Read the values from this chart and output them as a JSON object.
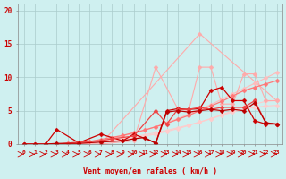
{
  "background_color": "#cff0f0",
  "grid_color": "#aacccc",
  "xlabel": "Vent moyen/en rafales ( km/h )",
  "xlabel_color": "#cc0000",
  "tick_color": "#cc0000",
  "ylabel_ticks": [
    0,
    5,
    10,
    15,
    20
  ],
  "xlim": [
    -0.5,
    23.5
  ],
  "ylim": [
    0,
    21
  ],
  "series": [
    {
      "x": [
        0,
        7,
        16,
        23
      ],
      "y": [
        0,
        0,
        16.5,
        6.5
      ],
      "color": "#ffaaaa",
      "marker": "D",
      "lw": 0.8,
      "ms": 2.5
    },
    {
      "x": [
        0,
        1,
        2,
        3,
        4,
        5,
        6,
        7,
        8,
        9,
        10,
        11,
        12,
        13,
        14,
        15,
        16,
        17,
        18,
        19,
        20,
        21,
        22,
        23
      ],
      "y": [
        0,
        0,
        0,
        0,
        0.1,
        0.2,
        0.4,
        0.6,
        0.9,
        1.2,
        1.6,
        2.1,
        2.6,
        3.2,
        3.8,
        4.5,
        5.2,
        5.9,
        6.7,
        7.5,
        8.3,
        9.1,
        9.9,
        10.7
      ],
      "color": "#ffbbbb",
      "marker": "D",
      "lw": 0.8,
      "ms": 2.5
    },
    {
      "x": [
        0,
        1,
        2,
        3,
        4,
        5,
        6,
        7,
        8,
        9,
        10,
        11,
        12,
        13,
        14,
        15,
        16,
        17,
        18,
        19,
        20,
        21,
        22,
        23
      ],
      "y": [
        0,
        0,
        0,
        0,
        0.05,
        0.1,
        0.2,
        0.35,
        0.5,
        0.7,
        0.9,
        1.2,
        1.5,
        1.9,
        2.3,
        2.8,
        3.3,
        3.8,
        4.4,
        5.0,
        5.6,
        6.0,
        6.4,
        6.5
      ],
      "color": "#ffcccc",
      "marker": "D",
      "lw": 0.8,
      "ms": 2.5
    },
    {
      "x": [
        0,
        3,
        7,
        10,
        12,
        14,
        15,
        16,
        17,
        18,
        19,
        20,
        21,
        22,
        23
      ],
      "y": [
        0,
        0,
        0,
        0.5,
        11.5,
        5.3,
        5.0,
        11.5,
        11.5,
        6.0,
        6.0,
        10.5,
        10.5,
        6.5,
        6.5
      ],
      "color": "#ffaaaa",
      "marker": "D",
      "lw": 0.8,
      "ms": 2.5
    },
    {
      "x": [
        0,
        1,
        2,
        3,
        4,
        5,
        6,
        7,
        8,
        9,
        10,
        11,
        12,
        13,
        14,
        15,
        16,
        17,
        18,
        19,
        20,
        21,
        22,
        23
      ],
      "y": [
        0,
        0,
        0,
        0,
        0.05,
        0.15,
        0.3,
        0.45,
        0.65,
        0.85,
        1.1,
        1.4,
        1.7,
        2.05,
        2.45,
        2.85,
        3.3,
        3.8,
        4.3,
        4.8,
        5.2,
        5.5,
        5.7,
        5.8
      ],
      "color": "#ffcccc",
      "marker": "D",
      "lw": 0.8,
      "ms": 2.5
    },
    {
      "x": [
        0,
        1,
        2,
        3,
        4,
        5,
        6,
        7,
        8,
        9,
        10,
        11,
        12,
        13,
        14,
        15,
        16,
        17,
        18,
        19,
        20,
        21,
        22,
        23
      ],
      "y": [
        0,
        0,
        0,
        0,
        0.1,
        0.2,
        0.4,
        0.7,
        1.0,
        1.3,
        1.7,
        2.1,
        2.6,
        3.1,
        3.7,
        4.3,
        5.0,
        5.7,
        6.4,
        7.2,
        8.0,
        8.5,
        9.0,
        9.5
      ],
      "color": "#ff7777",
      "marker": "D",
      "lw": 0.9,
      "ms": 2.5
    },
    {
      "x": [
        0,
        2,
        3,
        5,
        7,
        9,
        10,
        12,
        13,
        14,
        15,
        16,
        17,
        18,
        19,
        20,
        21,
        22,
        23
      ],
      "y": [
        0,
        0,
        2.2,
        0.2,
        1.5,
        0.5,
        1.5,
        0.2,
        5.0,
        5.3,
        5.2,
        5.3,
        8.0,
        8.5,
        6.5,
        6.5,
        3.5,
        3.0,
        3.0
      ],
      "color": "#cc0000",
      "marker": "D",
      "lw": 0.9,
      "ms": 2.5
    },
    {
      "x": [
        0,
        1,
        3,
        5,
        7,
        8,
        10,
        12,
        13,
        14,
        15,
        16,
        17,
        18,
        19,
        20,
        21,
        22,
        23
      ],
      "y": [
        0,
        0,
        0,
        0.3,
        0.5,
        0.8,
        1.2,
        5.0,
        3.0,
        5.2,
        5.2,
        5.5,
        5.2,
        5.5,
        5.5,
        5.5,
        6.5,
        3.2,
        3.0
      ],
      "color": "#ee4444",
      "marker": "D",
      "lw": 0.9,
      "ms": 2.5
    },
    {
      "x": [
        0,
        1,
        2,
        3,
        5,
        7,
        9,
        10,
        11,
        12,
        13,
        14,
        15,
        16,
        17,
        18,
        19,
        20,
        21,
        22,
        23
      ],
      "y": [
        0,
        0,
        0,
        0.1,
        0.1,
        0.3,
        0.5,
        0.8,
        1.0,
        0.1,
        4.8,
        5.0,
        4.8,
        5.0,
        5.2,
        5.0,
        5.2,
        5.0,
        6.2,
        3.2,
        3.0
      ],
      "color": "#bb0000",
      "marker": "D",
      "lw": 0.9,
      "ms": 2.5
    }
  ],
  "xticks": [
    0,
    1,
    2,
    3,
    4,
    5,
    6,
    7,
    8,
    9,
    10,
    11,
    12,
    13,
    14,
    15,
    16,
    17,
    18,
    19,
    20,
    21,
    22,
    23
  ],
  "markersize": 2.0
}
